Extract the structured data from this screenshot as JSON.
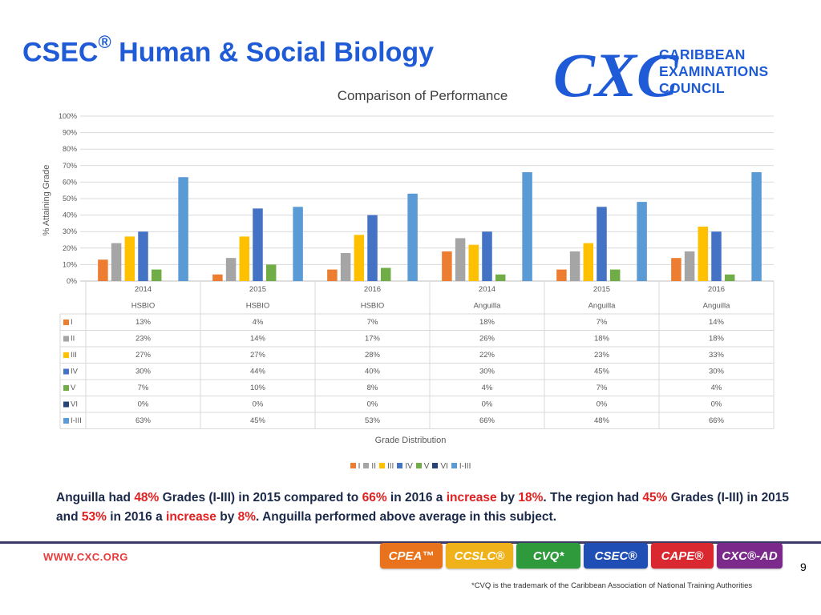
{
  "slide": {
    "title": "CSEC",
    "title_mark": "®",
    "title_rest": " Human & Social Biology",
    "org_name_1": "CARIBBEAN",
    "org_name_2": "EXAMINATIONS",
    "org_name_3": "COUNCIL",
    "logo_text": "CXC",
    "page_number": "9"
  },
  "summary": {
    "p1": "Anguilla had ",
    "h1": "48%",
    "p2": " Grades (I-III) in 2015 compared to ",
    "h2": "66%",
    "p3": " in 2016 a ",
    "h3": "increase",
    "p4": " by ",
    "h4": "18%",
    "p5": ". The region had ",
    "h5": "45%",
    "p6": " Grades (I-III) in 2015 and ",
    "h6": "53%",
    "p7": " in 2016 a ",
    "h7": "increase",
    "p8": " by ",
    "h8": "8%",
    "p9": ". Anguilla performed above average in this subject."
  },
  "footer": {
    "website": "WWW.CXC.ORG",
    "badges": [
      {
        "label": "CPEA™",
        "color": "#e8731c"
      },
      {
        "label": "CCSLC®",
        "color": "#f0b21a"
      },
      {
        "label": "CVQ*",
        "color": "#2e9a3c"
      },
      {
        "label": "CSEC®",
        "color": "#1f4fb4"
      },
      {
        "label": "CAPE®",
        "color": "#d9282f"
      },
      {
        "label": "CXC®-AD",
        "color": "#7b2a8c"
      }
    ],
    "footnote": "*CVQ is the trademark of the Caribbean Association of National Training Authorities"
  },
  "chart_data": {
    "type": "bar",
    "title": "Comparison of Performance",
    "ylabel": "% Attaining Grade",
    "xlabel": "Grade Distribution",
    "ylim": [
      0,
      100
    ],
    "yticks": [
      "0%",
      "10%",
      "20%",
      "30%",
      "40%",
      "50%",
      "60%",
      "70%",
      "80%",
      "90%",
      "100%"
    ],
    "categories": [
      {
        "year": "2014",
        "group": "HSBIO"
      },
      {
        "year": "2015",
        "group": "HSBIO"
      },
      {
        "year": "2016",
        "group": "HSBIO"
      },
      {
        "year": "2014",
        "group": "Anguilla"
      },
      {
        "year": "2015",
        "group": "Anguilla"
      },
      {
        "year": "2016",
        "group": "Anguilla"
      }
    ],
    "series": [
      {
        "name": "I",
        "color": "#ed7d31",
        "values": [
          13,
          4,
          7,
          18,
          7,
          14
        ],
        "labels": [
          "13%",
          "4%",
          "7%",
          "18%",
          "7%",
          "14%"
        ]
      },
      {
        "name": "II",
        "color": "#a5a5a5",
        "values": [
          23,
          14,
          17,
          26,
          18,
          18
        ],
        "labels": [
          "23%",
          "14%",
          "17%",
          "26%",
          "18%",
          "18%"
        ]
      },
      {
        "name": "III",
        "color": "#ffc000",
        "values": [
          27,
          27,
          28,
          22,
          23,
          33
        ],
        "labels": [
          "27%",
          "27%",
          "28%",
          "22%",
          "23%",
          "33%"
        ]
      },
      {
        "name": "IV",
        "color": "#4472c4",
        "values": [
          30,
          44,
          40,
          30,
          45,
          30
        ],
        "labels": [
          "30%",
          "44%",
          "40%",
          "30%",
          "45%",
          "30%"
        ]
      },
      {
        "name": "V",
        "color": "#70ad47",
        "values": [
          7,
          10,
          8,
          4,
          7,
          4
        ],
        "labels": [
          "7%",
          "10%",
          "8%",
          "4%",
          "7%",
          "4%"
        ]
      },
      {
        "name": "VI",
        "color": "#264478",
        "values": [
          0,
          0,
          0,
          0,
          0,
          0
        ],
        "labels": [
          "0%",
          "0%",
          "0%",
          "0%",
          "0%",
          "0%"
        ]
      },
      {
        "name": "I-III",
        "color": "#5b9bd5",
        "values": [
          63,
          45,
          53,
          66,
          48,
          66
        ],
        "labels": [
          "63%",
          "45%",
          "53%",
          "66%",
          "48%",
          "66%"
        ]
      }
    ],
    "grid": true,
    "legend": "bottom",
    "data_table": true
  }
}
